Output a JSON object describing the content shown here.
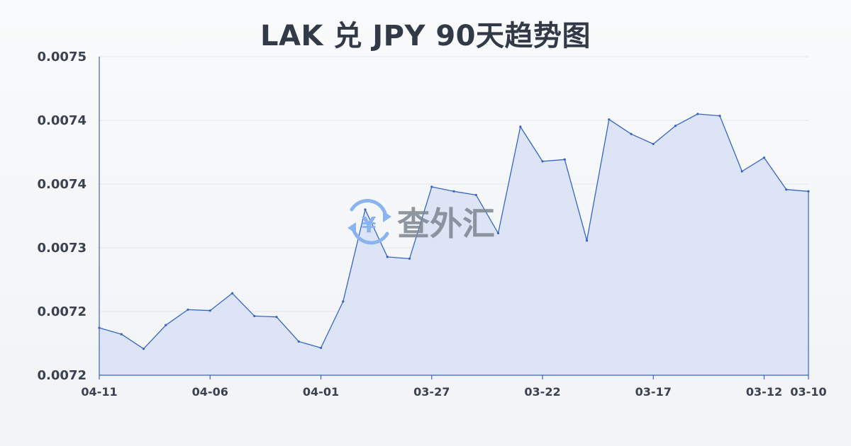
{
  "title": "LAK 兑 JPY 90天趋势图",
  "watermark": {
    "icon": "yen-cycle-icon",
    "symbol": "¥",
    "text": "查外汇"
  },
  "colors": {
    "line": "#3566c4",
    "fill": "#dbe3f6",
    "grid": "#e3e6ea",
    "axis": "#3566c4"
  },
  "chart_data": {
    "type": "area",
    "title": "LAK 兑 JPY 90天趋势图",
    "xlabel": "",
    "ylabel": "",
    "y_tick_labels": [
      "0.0075",
      "0.0074",
      "0.0074",
      "0.0073",
      "0.0072",
      "0.0072"
    ],
    "ylim": [
      0.00715,
      0.0075
    ],
    "grid": true,
    "x_tick_labels": [
      {
        "label": "04-11",
        "index": 0
      },
      {
        "label": "04-06",
        "index": 5
      },
      {
        "label": "04-01",
        "index": 10
      },
      {
        "label": "03-27",
        "index": 15
      },
      {
        "label": "03-22",
        "index": 20
      },
      {
        "label": "03-17",
        "index": 25
      },
      {
        "label": "03-12",
        "index": 30
      },
      {
        "label": "03-10",
        "index": 32
      }
    ],
    "series": [
      {
        "values": [
          0.007202,
          0.007195,
          0.007179,
          0.007205,
          0.007222,
          0.007221,
          0.00724,
          0.007215,
          0.007214,
          0.007187,
          0.00718,
          0.007231,
          0.007332,
          0.00728,
          0.007278,
          0.007357,
          0.007352,
          0.007348,
          0.007306,
          0.007423,
          0.007385,
          0.007387,
          0.007298,
          0.007431,
          0.007415,
          0.007404,
          0.007424,
          0.007437,
          0.007435,
          0.007374,
          0.007389,
          0.007354,
          0.007352
        ]
      }
    ]
  }
}
